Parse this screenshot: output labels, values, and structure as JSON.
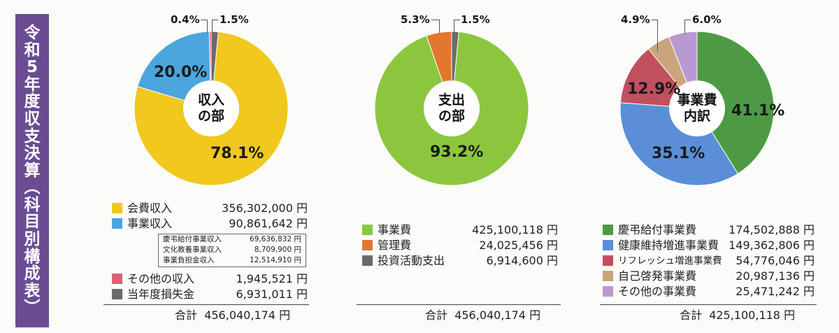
{
  "sidebar": {
    "title": "令和5年度収支決算(科目別構成表)"
  },
  "unit": "円",
  "charts": [
    {
      "center_label": [
        "収入",
        "の部"
      ],
      "legend": [
        {
          "label": "会費収入",
          "value": "356,302,000",
          "color": "#f0c81e"
        },
        {
          "label": "事業収入",
          "value": "90,861,642",
          "color": "#4aa6dc"
        },
        {
          "label": "その他の収入",
          "value": "1,945,521",
          "color": "#e0607a"
        },
        {
          "label": "当年度損失金",
          "value": "6,931,011",
          "color": "#6d6a69"
        }
      ],
      "sub_items": [
        {
          "label": "慶弔給付事業収入",
          "value": "69,636,832",
          "unit": "円"
        },
        {
          "label": "文化教養事業収入",
          "value": "8,709,900",
          "unit": "円"
        },
        {
          "label": "事業負担金収入",
          "value": "12,514,910",
          "unit": "円"
        }
      ],
      "total_label": "合計",
      "total_value": "456,040,174"
    },
    {
      "center_label": [
        "支出",
        "の部"
      ],
      "legend": [
        {
          "label": "事業費",
          "value": "425,100,118",
          "color": "#8cc63e"
        },
        {
          "label": "管理費",
          "value": "24,025,456",
          "color": "#e2772e"
        },
        {
          "label": "投資活動支出",
          "value": "6,914,600",
          "color": "#6d6a69"
        }
      ],
      "total_label": "合計",
      "total_value": "456,040,174"
    },
    {
      "center_label": [
        "事業費",
        "内訳"
      ],
      "legend": [
        {
          "label": "慶弔給付事業費",
          "value": "174,502,888",
          "color": "#4d9a45"
        },
        {
          "label": "健康維持増進事業費",
          "value": "149,362,806",
          "color": "#5a8fd8"
        },
        {
          "label": "リフレッシュ増進事業費",
          "value": "54,776,046",
          "color": "#c0505e"
        },
        {
          "label": "自己啓発事業費",
          "value": "20,987,136",
          "color": "#c9a57c"
        },
        {
          "label": "その他の事業費",
          "value": "25,471,242",
          "color": "#b99ad0"
        }
      ],
      "total_label": "合計",
      "total_value": "425,100,118"
    }
  ],
  "chart_data": [
    {
      "type": "pie",
      "title": "収入の部",
      "categories": [
        "会費収入",
        "事業収入",
        "その他の収入",
        "当年度損失金"
      ],
      "values": [
        78.1,
        20.0,
        0.4,
        1.5
      ],
      "labels": [
        "78.1%",
        "20.0%",
        "0.4%",
        "1.5%"
      ]
    },
    {
      "type": "pie",
      "title": "支出の部",
      "categories": [
        "事業費",
        "管理費",
        "投資活動支出"
      ],
      "values": [
        93.2,
        5.3,
        1.5
      ],
      "labels": [
        "93.2%",
        "5.3%",
        "1.5%"
      ]
    },
    {
      "type": "pie",
      "title": "事業費内訳",
      "categories": [
        "慶弔給付事業費",
        "健康維持増進事業費",
        "リフレッシュ増進事業費",
        "自己啓発事業費",
        "その他の事業費"
      ],
      "values": [
        41.1,
        35.1,
        12.9,
        4.9,
        6.0
      ],
      "labels": [
        "41.1%",
        "35.1%",
        "12.9%",
        "4.9%",
        "6.0%"
      ]
    }
  ]
}
